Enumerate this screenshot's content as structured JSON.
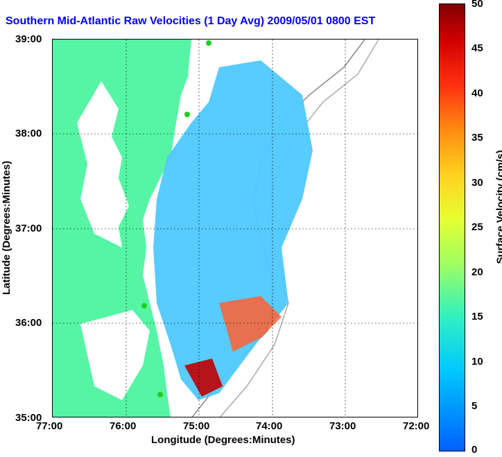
{
  "title": "Southern Mid-Atlantic Raw Velocities (1 Day Avg) 2009/05/01 0800 EST",
  "axes": {
    "x_label": "Longitude (Degrees:Minutes)",
    "y_label": "Latitude (Degrees:Minutes)",
    "x_ticks": [
      "77:00",
      "76:00",
      "75:00",
      "74:00",
      "73:00",
      "72:00"
    ],
    "y_ticks": [
      "39:00",
      "38:00",
      "37:00",
      "36:00",
      "35:00"
    ]
  },
  "colorbar": {
    "label": "Surface Velocity (cm/s)",
    "ticks": [
      "50",
      "45",
      "40",
      "35",
      "30",
      "25",
      "20",
      "15",
      "10",
      "5",
      "0"
    ]
  },
  "colors": {
    "land": "#55f5a5",
    "title": "#0000ff"
  }
}
